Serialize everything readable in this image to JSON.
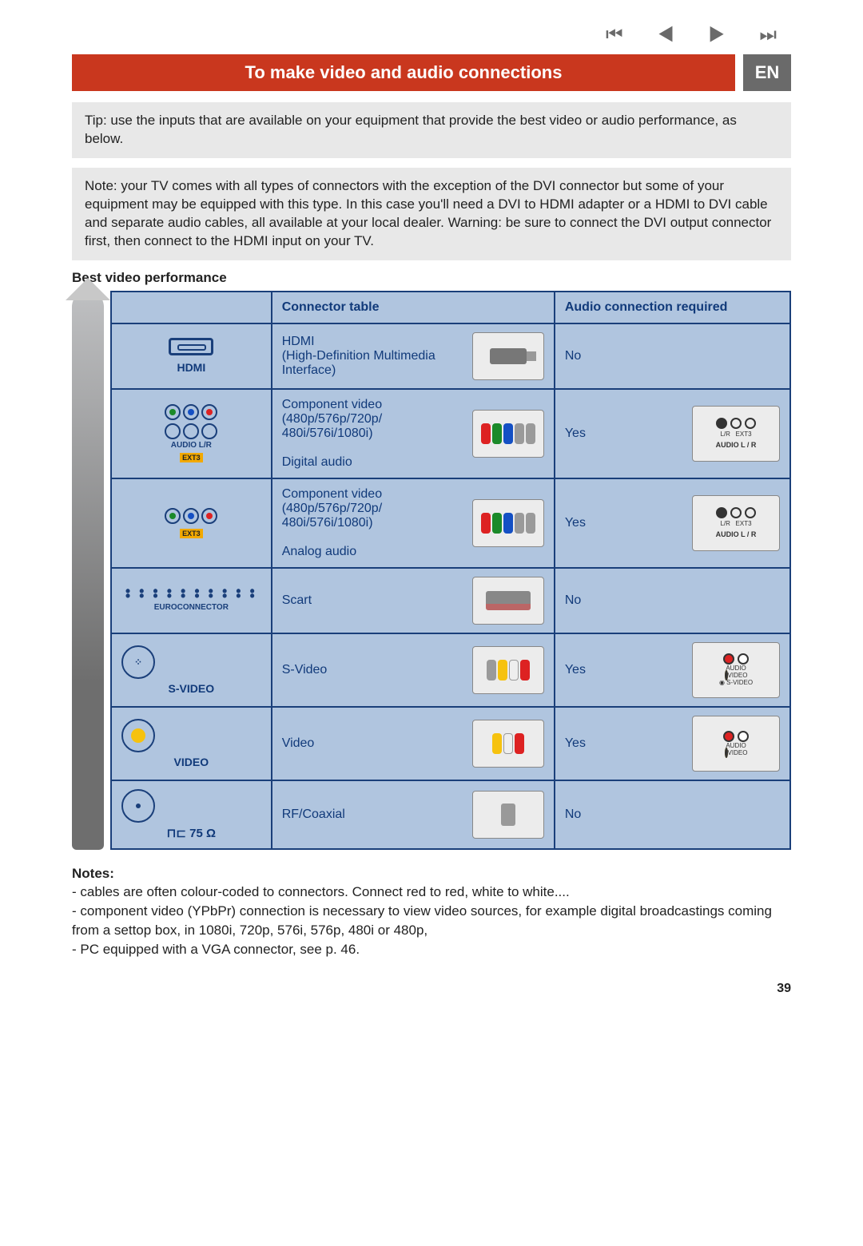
{
  "nav_glyphs": "⏮ ◀ ▶ ⏭",
  "title": "To make video and audio connections",
  "lang": "EN",
  "tip_box": "Tip: use the inputs that are available on your equipment that provide the best video or audio performance, as below.",
  "note_box": "Note: your TV comes with all types of connectors with the exception of the DVI connector but some of your equipment may be equipped with this type. In this case you'll need a DVI to HDMI adapter or a HDMI to DVI cable and separate audio cables, all available at your local dealer. Warning: be sure to connect the DVI output connector first, then connect to the HDMI input on your TV.",
  "section_label": "Best video performance",
  "table": {
    "headers": {
      "connector": "Connector table",
      "audio": "Audio connection required"
    },
    "header_bg": "#b0c5df",
    "border_color": "#1a3f7a",
    "text_color": "#113a7a",
    "rows": [
      {
        "port_label": "HDMI",
        "connector_text": "HDMI\n(High-Definition Multimedia Interface)",
        "audio_required": "No",
        "audio_jack": null,
        "port_type": "hdmi",
        "cable": "hdmi"
      },
      {
        "port_label": "EXT3",
        "port_sub": "AUDIO L/R",
        "connector_text": "Component video (480p/576p/720p/ 480i/576i/1080i)\n\nDigital audio",
        "audio_required": "Yes",
        "audio_jack": "AUDIO L / R",
        "jack_sub": "EXT3",
        "port_type": "ypbpr_full",
        "cable": "rgb5"
      },
      {
        "port_label": "EXT3",
        "connector_text": "Component video (480p/576p/720p/ 480i/576i/1080i)\n\nAnalog audio",
        "audio_required": "Yes",
        "audio_jack": "AUDIO L / R",
        "jack_sub": "EXT3",
        "port_type": "ypbpr",
        "cable": "rgb5"
      },
      {
        "port_label": "EUROCONNECTOR",
        "connector_text": "Scart",
        "audio_required": "No",
        "audio_jack": null,
        "port_type": "scart",
        "cable": "scart"
      },
      {
        "port_label": "S-VIDEO",
        "connector_text": "S-Video",
        "audio_required": "Yes",
        "audio_jack": "S-VIDEO",
        "jack_extras": [
          "AUDIO",
          "VIDEO",
          "S-VIDEO"
        ],
        "port_type": "svideo",
        "cable": "ywr_sv"
      },
      {
        "port_label": "VIDEO",
        "connector_text": "Video",
        "audio_required": "Yes",
        "audio_jack": "VIDEO",
        "jack_extras": [
          "AUDIO",
          "VIDEO"
        ],
        "port_type": "video",
        "cable": "ywr"
      },
      {
        "port_label": "75 Ω",
        "connector_text": "RF/Coaxial",
        "audio_required": "No",
        "audio_jack": null,
        "port_type": "coax",
        "cable": "coax"
      }
    ]
  },
  "notes": {
    "heading": "Notes:",
    "items": [
      "cables are often colour-coded to connectors. Connect red to red, white to white....",
      "component video (YPbPr) connection is necessary to view video sources, for example digital broadcastings coming from a settop box, in 1080i, 720p, 576i, 576p, 480i or 480p,",
      "PC equipped with a VGA connector, see p. 46."
    ]
  },
  "page_number": "39",
  "colors": {
    "title_bg": "#c9371e",
    "lang_bg": "#6a6a6a",
    "box_bg": "#e8e8e8",
    "cell_bg": "#b0c5df"
  }
}
